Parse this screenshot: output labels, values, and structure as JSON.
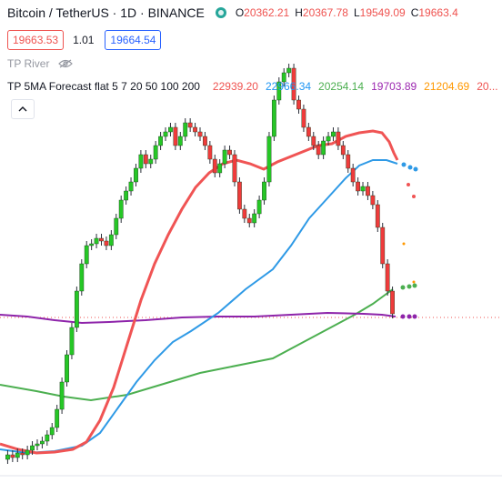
{
  "header": {
    "symbol_title": "Bitcoin / TetherUS · 1D · BINANCE",
    "ohlc": [
      {
        "label": "O",
        "value": "20362.21"
      },
      {
        "label": "H",
        "value": "20367.78"
      },
      {
        "label": "L",
        "value": "19549.09"
      },
      {
        "label": "C",
        "value": "19663.4"
      }
    ],
    "bid": "19663.53",
    "spread": "1.01",
    "ask": "19664.54"
  },
  "indicators": {
    "river_name": "TP River",
    "forecast_title": "TP 5MA Forecast flat 5 7 20 50 100 200",
    "values": [
      {
        "text": "22939.20",
        "color": "#ef5350"
      },
      {
        "text": "22966.34",
        "color": "#2196f3"
      },
      {
        "text": "20254.14",
        "color": "#4caf50"
      },
      {
        "text": "19703.89",
        "color": "#9c27b0"
      },
      {
        "text": "21204.69",
        "color": "#ff9800"
      },
      {
        "text": "20...",
        "color": "#ef5350"
      }
    ],
    "collapse_icon": "chevron-up-icon"
  },
  "colors": {
    "up": "#26c726",
    "down": "#ef3b3b",
    "ma_red": "#f05454",
    "ma_blue": "#2f9ae6",
    "ma_green": "#4caf50",
    "ma_purple": "#8e24aa"
  }
}
